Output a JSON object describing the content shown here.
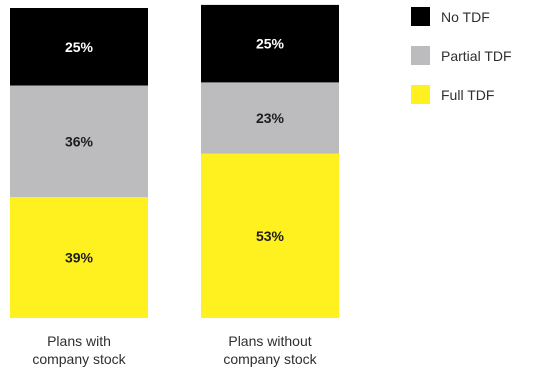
{
  "chart_data": {
    "type": "bar",
    "stacked": true,
    "percent_stacked": true,
    "categories": [
      [
        "Plans with",
        "company stock"
      ],
      [
        "Plans without",
        "company stock"
      ]
    ],
    "series": [
      {
        "name": "Full TDF",
        "color": "#fff01f",
        "values": [
          39,
          53
        ]
      },
      {
        "name": "Partial TDF",
        "color": "#bcbcbe",
        "values": [
          36,
          23
        ]
      },
      {
        "name": "No TDF",
        "color": "#000000",
        "values": [
          25,
          25
        ]
      }
    ],
    "data_labels": [
      [
        "39%",
        "36%",
        "25%"
      ],
      [
        "53%",
        "23%",
        "25%"
      ]
    ],
    "legend": {
      "placement": "top-right",
      "items": [
        "No TDF",
        "Partial TDF",
        "Full TDF"
      ],
      "colors": [
        "#000000",
        "#bcbcbe",
        "#fff01f"
      ]
    },
    "title": "",
    "xlabel": "",
    "ylabel": "",
    "ylim": [
      0,
      100
    ],
    "grid": false
  }
}
